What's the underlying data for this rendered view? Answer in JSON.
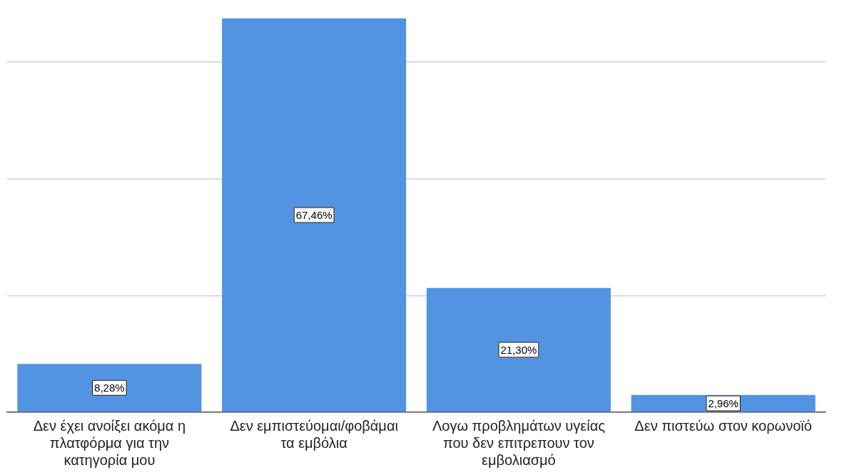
{
  "chart_data": {
    "type": "bar",
    "categories": [
      "Δεν έχει ανοίξει ακόμα η πλατφόρμα για την κατηγορία μου",
      "Δεν εμπιστεύομαι/φοβάμαι τα εμβόλια",
      "Λογω προβλημάτων υγείας που δεν επιτρεπουν τον εμβολιασμό",
      "Δεν πιστεύω στον κορωνοϊό"
    ],
    "values": [
      8.28,
      67.46,
      21.3,
      2.96
    ],
    "value_labels": [
      "8,28%",
      "67,46%",
      "21,30%",
      "2,96%"
    ],
    "color": "#5294e2",
    "yticks": [
      {
        "value": 0,
        "label": null
      },
      {
        "value": 20,
        "label": null
      },
      {
        "value": 40,
        "label": null
      },
      {
        "value": 60,
        "label": null
      }
    ],
    "grid": "y",
    "tick_labels": "x",
    "legend": false
  }
}
